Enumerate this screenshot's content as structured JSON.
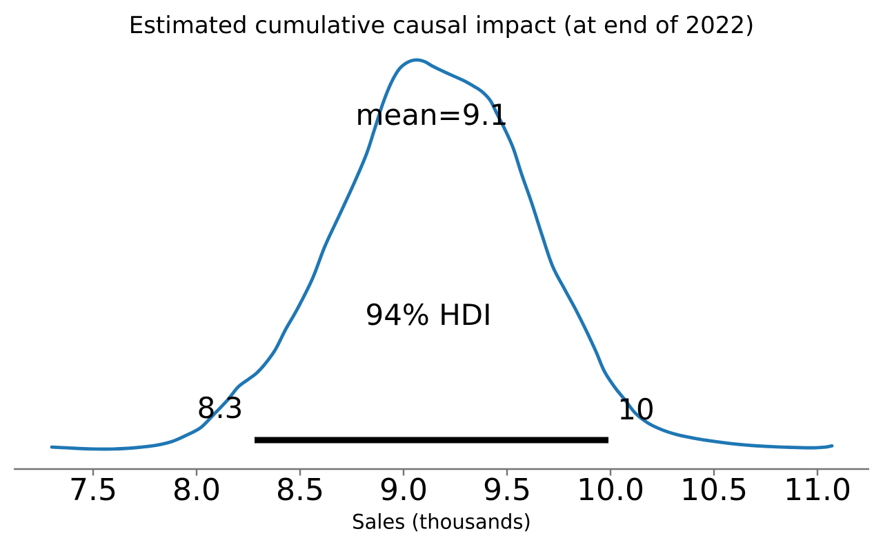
{
  "chart_data": {
    "type": "line",
    "title": "Estimated cumulative causal impact (at end of 2022)",
    "xlabel": "Sales (thousands)",
    "x_ticks": [
      7.5,
      8.0,
      8.5,
      9.0,
      9.5,
      10.0,
      10.5,
      11.0
    ],
    "x_tick_labels": [
      "7.5",
      "8.0",
      "8.5",
      "9.0",
      "9.5",
      "10.0",
      "10.5",
      "11.0"
    ],
    "xlim": [
      7.12,
      11.25
    ],
    "ylim": [
      0,
      1.05
    ],
    "grid": false,
    "legend": null,
    "mean": 9.1,
    "hdi": {
      "prob": 0.94,
      "lower": 8.3,
      "upper": 10,
      "bar_x": [
        8.28,
        9.99
      ]
    },
    "labels": {
      "mean": "mean=9.1",
      "hdi": "94% HDI",
      "hdi_lower": "8.3",
      "hdi_upper": "10"
    },
    "series": [
      {
        "name": "posterior-density-kde",
        "color": "#1f77b4",
        "x": [
          7.3,
          7.4,
          7.5,
          7.6,
          7.7,
          7.8,
          7.88,
          7.95,
          8.02,
          8.08,
          8.15,
          8.2,
          8.25,
          8.29,
          8.33,
          8.38,
          8.43,
          8.49,
          8.56,
          8.62,
          8.69,
          8.76,
          8.82,
          8.86,
          8.9,
          8.94,
          8.98,
          9.02,
          9.06,
          9.1,
          9.14,
          9.19,
          9.24,
          9.29,
          9.34,
          9.38,
          9.42,
          9.45,
          9.49,
          9.53,
          9.57,
          9.62,
          9.67,
          9.72,
          9.78,
          9.83,
          9.88,
          9.93,
          9.97,
          10.02,
          10.07,
          10.12,
          10.18,
          10.25,
          10.32,
          10.4,
          10.48,
          10.58,
          10.68,
          10.78,
          10.88,
          10.98,
          11.04,
          11.07
        ],
        "density": [
          0.007,
          0.004,
          0.002,
          0.002,
          0.005,
          0.011,
          0.021,
          0.037,
          0.057,
          0.089,
          0.128,
          0.161,
          0.181,
          0.197,
          0.22,
          0.257,
          0.309,
          0.365,
          0.44,
          0.523,
          0.603,
          0.684,
          0.759,
          0.824,
          0.89,
          0.943,
          0.979,
          0.996,
          1.002,
          0.998,
          0.986,
          0.973,
          0.961,
          0.949,
          0.934,
          0.92,
          0.897,
          0.865,
          0.823,
          0.775,
          0.709,
          0.633,
          0.55,
          0.472,
          0.411,
          0.362,
          0.309,
          0.252,
          0.202,
          0.161,
          0.128,
          0.094,
          0.069,
          0.051,
          0.039,
          0.03,
          0.023,
          0.016,
          0.011,
          0.008,
          0.006,
          0.005,
          0.007,
          0.01
        ]
      }
    ],
    "axis": {
      "spine_color": "#747474",
      "tick_color": "#747474"
    }
  },
  "colors": {
    "curve": "#1f77b4",
    "hdi_bar": "#000000",
    "text": "#000000",
    "background": "#ffffff"
  }
}
